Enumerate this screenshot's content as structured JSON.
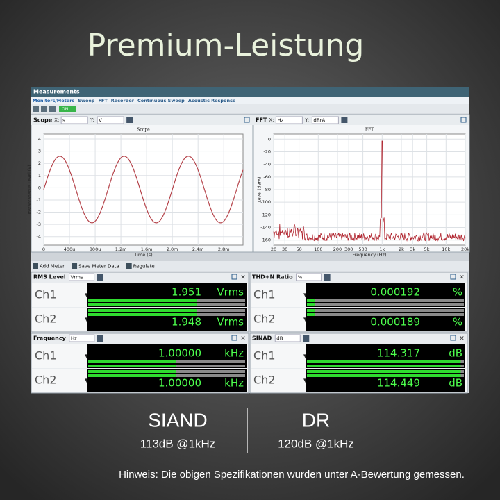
{
  "header": {
    "title": "Premium-Leistung"
  },
  "window": {
    "title": "Measurements",
    "tabs": [
      "Monitors/Meters",
      "Sweep",
      "FFT",
      "Recorder",
      "Continuous Sweep",
      "Acoustic Response"
    ],
    "toggle": "ON",
    "meter_toolbar": [
      "Add Meter",
      "Save Meter Data",
      "Regulate"
    ]
  },
  "scope": {
    "title": "Scope",
    "x_label": "X:",
    "x_unit": "s",
    "y_label": "Y:",
    "y_unit": "V",
    "chart_title": "Scope",
    "ylabel": "Instantaneous Level (V)",
    "xlabel": "Time (s)",
    "ylim": [
      -4.7,
      4.4
    ],
    "yticks": [
      4,
      3,
      2,
      1,
      0,
      -1,
      -2,
      -3,
      -4
    ],
    "xlim": [
      0,
      0.0031
    ],
    "xticks": [
      {
        "value": 0,
        "label": "0"
      },
      {
        "value": 0.0004,
        "label": "400u"
      },
      {
        "value": 0.0008,
        "label": "800u"
      },
      {
        "value": 0.0012,
        "label": "1.2m"
      },
      {
        "value": 0.0016,
        "label": "1.6m"
      },
      {
        "value": 0.002,
        "label": "2.0m"
      },
      {
        "value": 0.0024,
        "label": "2.4m"
      },
      {
        "value": 0.0028,
        "label": "2.8m"
      }
    ]
  },
  "fft": {
    "title": "FFT",
    "x_label": "X:",
    "x_unit": "Hz",
    "y_label": "Y:",
    "y_unit": "dBrA",
    "chart_title": "FFT",
    "ylabel": "Level (dBrA)",
    "xlabel": "Frequency (Hz)",
    "ylim": [
      -168,
      8
    ],
    "yticks": [
      0,
      -20,
      -40,
      -60,
      -80,
      -100,
      -120,
      -140,
      -160
    ],
    "xlim": [
      20,
      20000
    ],
    "xticks": [
      20,
      30,
      50,
      100,
      200,
      300,
      500,
      {
        "value": 1000,
        "label": "1k"
      },
      {
        "value": 2000,
        "label": "2k"
      },
      {
        "value": 3000,
        "label": "3k"
      },
      {
        "value": 5000,
        "label": "5k"
      },
      {
        "value": 10000,
        "label": "10k"
      },
      {
        "value": 20000,
        "label": "20k"
      }
    ]
  },
  "meters": [
    {
      "title": "RMS Level",
      "unit": "Vrms",
      "rows": [
        {
          "channel": "Ch1",
          "value": "1.951",
          "unit": "Vrms"
        },
        {
          "channel": "Ch2",
          "value": "1.948",
          "unit": "Vrms"
        }
      ]
    },
    {
      "title": "THD+N Ratio",
      "unit": "%",
      "rows": [
        {
          "channel": "Ch1",
          "value": "0.000192",
          "unit": "%"
        },
        {
          "channel": "Ch2",
          "value": "0.000189",
          "unit": "%"
        }
      ]
    },
    {
      "title": "Frequency",
      "unit": "Hz",
      "rows": [
        {
          "channel": "Ch1",
          "value": "1.00000",
          "unit": "kHz"
        },
        {
          "channel": "Ch2",
          "value": "1.00000",
          "unit": "kHz"
        }
      ]
    },
    {
      "title": "SINAD",
      "unit": "dB",
      "rows": [
        {
          "channel": "Ch1",
          "value": "114.317",
          "unit": "dB"
        },
        {
          "channel": "Ch2",
          "value": "114.449",
          "unit": "dB"
        }
      ]
    }
  ],
  "specs": [
    {
      "label": "SIAND",
      "value": "113dB @1kHz"
    },
    {
      "label": "DR",
      "value": "120dB @1kHz"
    }
  ],
  "note": "Hinweis: Die obigen Spezifikationen wurden unter A-Bewertung gemessen."
}
